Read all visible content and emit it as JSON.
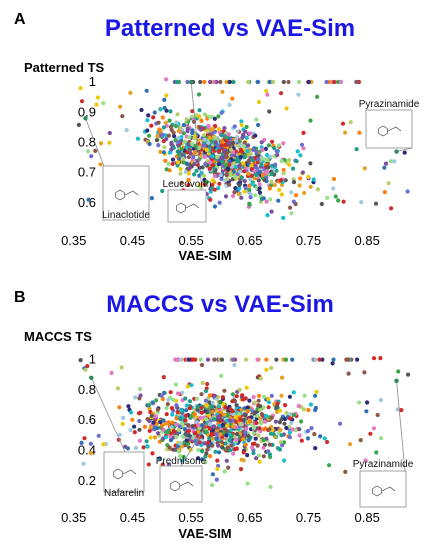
{
  "chart_data": [
    {
      "panel_letter": "A",
      "type": "scatter",
      "title": "Patterned vs VAE-Sim",
      "xlabel": "VAE-SIM",
      "ylabel": "Patterned TS",
      "xlim": [
        0.33,
        0.94
      ],
      "ylim": [
        0.55,
        1.02
      ],
      "x_ticks": [
        "0.35",
        "0.45",
        "0.55",
        "0.65",
        "0.75",
        "0.85"
      ],
      "x_tick_values": [
        0.35,
        0.45,
        0.55,
        0.65,
        0.75,
        0.85
      ],
      "y_ticks": [
        "0.6",
        "0.7",
        "0.8",
        "0.9",
        "1"
      ],
      "y_tick_values": [
        0.6,
        0.7,
        0.8,
        0.9,
        1.0
      ],
      "grid": false,
      "cluster": {
        "center": [
          0.6,
          0.76
        ],
        "spread": [
          0.06,
          0.055
        ],
        "count": 900
      },
      "annotations": [
        {
          "label": "Linaclotide",
          "point": [
            0.37,
            0.88
          ]
        },
        {
          "label": "Leucovorin",
          "point": [
            0.55,
            1.0
          ]
        },
        {
          "label": "Pyrazinamide",
          "point": [
            0.9,
            0.77
          ]
        }
      ]
    },
    {
      "panel_letter": "B",
      "type": "scatter",
      "title": "MACCS vs VAE-Sim",
      "xlabel": "VAE-SIM",
      "ylabel": "MACCS TS",
      "xlim": [
        0.33,
        0.94
      ],
      "ylim": [
        0.1,
        1.05
      ],
      "x_ticks": [
        "0.35",
        "0.45",
        "0.55",
        "0.65",
        "0.75",
        "0.85"
      ],
      "x_tick_values": [
        0.35,
        0.45,
        0.55,
        0.65,
        0.75,
        0.85
      ],
      "y_ticks": [
        "0.2",
        "0.4",
        "0.6",
        "0.8",
        "1"
      ],
      "y_tick_values": [
        0.2,
        0.4,
        0.6,
        0.8,
        1.0
      ],
      "grid": false,
      "cluster": {
        "center": [
          0.6,
          0.57
        ],
        "spread": [
          0.065,
          0.11
        ],
        "count": 900
      },
      "annotations": [
        {
          "label": "Nafarelin",
          "point": [
            0.38,
            0.88
          ]
        },
        {
          "label": "Prednisone",
          "point": [
            0.6,
            0.72
          ]
        },
        {
          "label": "Pyrazinamide",
          "point": [
            0.9,
            0.86
          ]
        }
      ]
    }
  ],
  "palette": [
    "#1f9e89",
    "#e6a123",
    "#2f6fb2",
    "#c9302c",
    "#7a4fa0",
    "#3aa64b",
    "#e377c2",
    "#17becf",
    "#8c564b",
    "#f0c808",
    "#2c2c7a",
    "#b5cf6b",
    "#ff7f0e",
    "#9ecae1",
    "#555555",
    "#d62728",
    "#98df8a",
    "#6b6ecf"
  ]
}
